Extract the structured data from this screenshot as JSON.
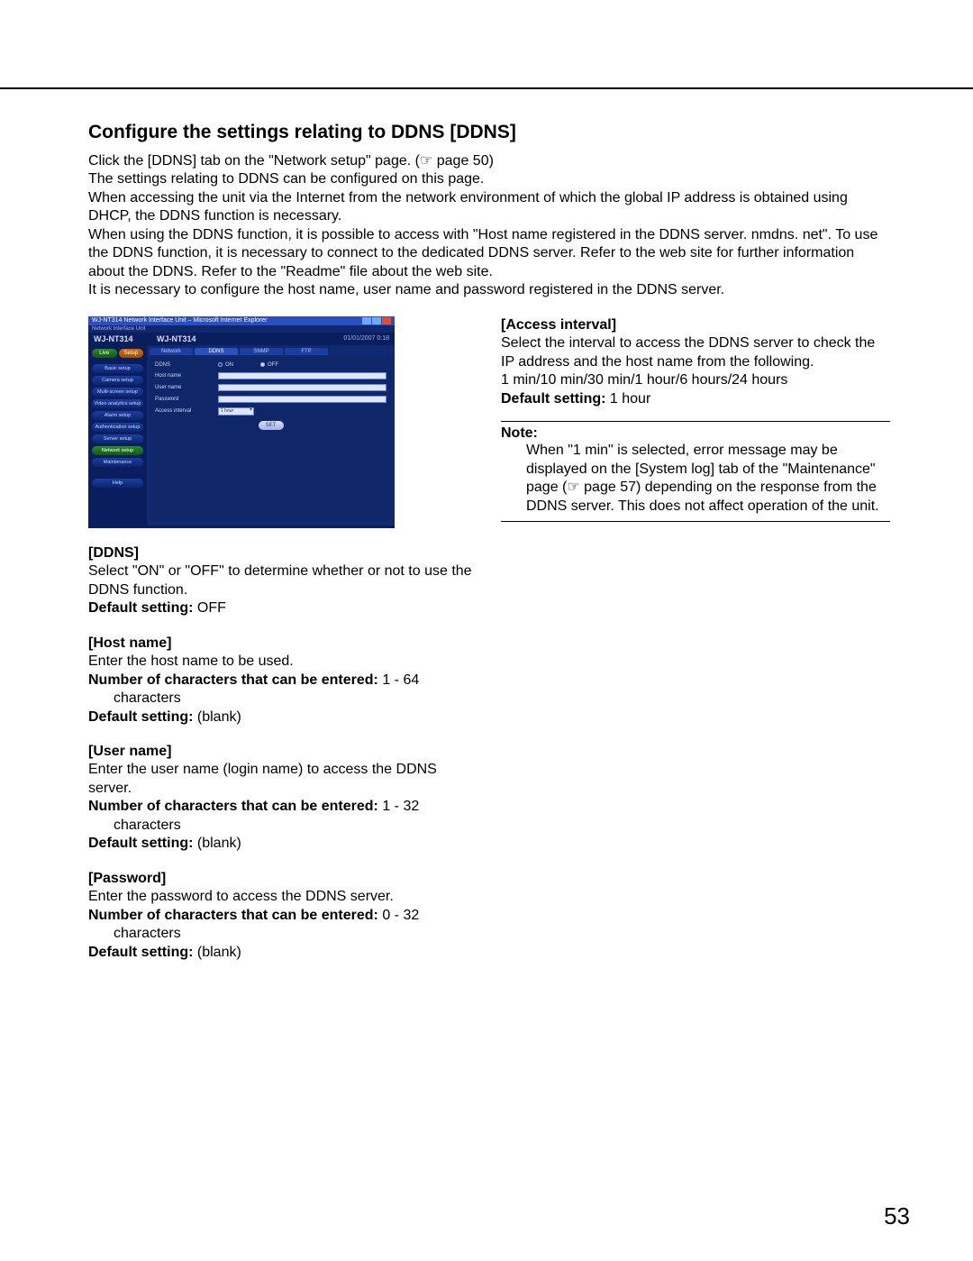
{
  "page_number": "53",
  "heading": "Configure the settings relating to DDNS [DDNS]",
  "intro_lines": [
    "Click the [DDNS] tab on the \"Network setup\" page. (☞ page 50)",
    "The settings relating to DDNS can be configured on this page.",
    "When accessing the unit via the Internet from the network environment of which the global IP address is obtained using DHCP, the DDNS function is necessary.",
    "When using the DDNS function, it is possible to access with \"Host name registered in the DDNS server. nmdns. net\". To use the DDNS function, it is necessary to connect to the dedicated DDNS server. Refer to the web site for further information about the DDNS. Refer to the \"Readme\" file about the web site.",
    "It is necessary to configure the host name, user name and password registered in the DDNS server."
  ],
  "screenshot": {
    "window_title": "WJ-NT314 Network Interface Unit – Microsoft Internet Explorer",
    "subbar": "Network Interface Unit",
    "model_left": "WJ-NT314",
    "model_mid": "WJ-NT314",
    "timestamp": "01/01/2007  0:18",
    "btn_live": "Live",
    "btn_setup": "Setup",
    "sidebar": {
      "items": [
        "Basic setup",
        "Camera setup",
        "Multi-screen setup",
        "Video analytics setup",
        "Alarm setup",
        "Authentication setup",
        "Server setup",
        "Network setup",
        "Maintenance"
      ],
      "help": "Help",
      "active_index": 7
    },
    "tabs": [
      "Network",
      "DDNS",
      "SNMP",
      "FTP"
    ],
    "active_tab": 1,
    "form": {
      "ddns_label": "DDNS",
      "on": "ON",
      "off": "OFF",
      "host_name": "Host name",
      "user_name": "User name",
      "password": "Password",
      "access_interval": "Access interval",
      "interval_value": "1 hour",
      "set_btn": "SET"
    }
  },
  "left_sections": [
    {
      "hd": "[DDNS]",
      "body": "Select \"ON\" or \"OFF\" to determine whether or not to use the DDNS function.",
      "lines": [
        {
          "label": "Default setting:",
          "value": " OFF"
        }
      ]
    },
    {
      "hd": "[Host name]",
      "body": "Enter the host name to be used.",
      "lines": [
        {
          "label": "Number of characters that can be entered:",
          "value": " 1 - 64",
          "indent_after": "characters"
        },
        {
          "label": "Default setting:",
          "value": " (blank)"
        }
      ]
    },
    {
      "hd": "[User name]",
      "body": "Enter the user name (login name) to access the DDNS server.",
      "lines": [
        {
          "label": "Number of characters that can be entered:",
          "value": " 1 - 32",
          "indent_after": "characters"
        },
        {
          "label": "Default setting:",
          "value": " (blank)"
        }
      ]
    },
    {
      "hd": "[Password]",
      "body": "Enter the password to access the DDNS server.",
      "lines": [
        {
          "label": "Number of characters that can be entered:",
          "value": " 0 - 32",
          "indent_after": "characters"
        },
        {
          "label": "Default setting:",
          "value": " (blank)"
        }
      ]
    }
  ],
  "right_sections": [
    {
      "hd": "[Access interval]",
      "body": "Select the interval to access the DDNS server to check the IP address and the host name from the following.",
      "extra": "1 min/10 min/30 min/1 hour/6 hours/24 hours",
      "lines": [
        {
          "label": "Default setting:",
          "value": " 1 hour"
        }
      ]
    }
  ],
  "note": {
    "hd": "Note:",
    "body": "When \"1 min\" is selected, error message may be displayed on the [System log] tab of the \"Maintenance\" page (☞ page 57) depending on the response from the DDNS server. This does not affect operation of the unit."
  }
}
